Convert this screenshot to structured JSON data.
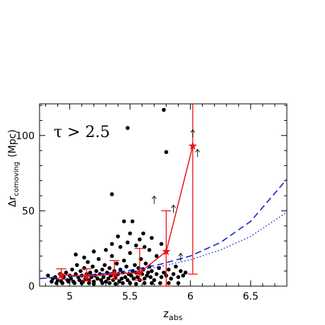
{
  "chart_data": {
    "type": "scatter",
    "annotation": "τ > 2.5",
    "xlabel": {
      "base": "z",
      "sub": "abs"
    },
    "ylabel": {
      "prefix": "Δr",
      "sub": "comoving",
      "unit": "(Mpc)"
    },
    "xlim": [
      4.75,
      6.8
    ],
    "ylim": [
      0,
      121
    ],
    "xticks": [
      5,
      5.5,
      6,
      6.5
    ],
    "yticks": [
      0,
      50,
      100
    ],
    "grid": false,
    "colors": {
      "points": "#000000",
      "binned": "#ee1111",
      "model": "#1122cc"
    },
    "points": [
      [
        4.82,
        7
      ],
      [
        4.86,
        5
      ],
      [
        4.88,
        6
      ],
      [
        4.9,
        4
      ],
      [
        4.92,
        8
      ],
      [
        4.93,
        3
      ],
      [
        4.95,
        6
      ],
      [
        4.97,
        9
      ],
      [
        4.98,
        4
      ],
      [
        5.0,
        7
      ],
      [
        5.01,
        5
      ],
      [
        5.02,
        11
      ],
      [
        5.03,
        3
      ],
      [
        5.05,
        8
      ],
      [
        5.06,
        14
      ],
      [
        5.07,
        6
      ],
      [
        5.08,
        4
      ],
      [
        5.09,
        10
      ],
      [
        5.1,
        7
      ],
      [
        5.11,
        3
      ],
      [
        5.12,
        12
      ],
      [
        5.13,
        5
      ],
      [
        5.14,
        8
      ],
      [
        5.15,
        16
      ],
      [
        5.16,
        4
      ],
      [
        5.17,
        9
      ],
      [
        5.18,
        6
      ],
      [
        5.19,
        13
      ],
      [
        5.2,
        3
      ],
      [
        5.21,
        7
      ],
      [
        5.22,
        10
      ],
      [
        5.23,
        5
      ],
      [
        5.24,
        18
      ],
      [
        5.25,
        8
      ],
      [
        5.26,
        4
      ],
      [
        5.27,
        11
      ],
      [
        5.28,
        6
      ],
      [
        5.29,
        14
      ],
      [
        5.3,
        3
      ],
      [
        5.31,
        9
      ],
      [
        5.32,
        5
      ],
      [
        5.33,
        12
      ],
      [
        5.34,
        7
      ],
      [
        5.35,
        20
      ],
      [
        5.36,
        4
      ],
      [
        5.37,
        10
      ],
      [
        5.38,
        6
      ],
      [
        5.39,
        15
      ],
      [
        5.4,
        8
      ],
      [
        5.41,
        3
      ],
      [
        5.42,
        11
      ],
      [
        5.43,
        5
      ],
      [
        5.44,
        9
      ],
      [
        5.45,
        17
      ],
      [
        5.46,
        6
      ],
      [
        5.47,
        13
      ],
      [
        5.48,
        4
      ],
      [
        5.49,
        8
      ],
      [
        5.5,
        22
      ],
      [
        5.51,
        7
      ],
      [
        5.52,
        10
      ],
      [
        5.53,
        5
      ],
      [
        5.54,
        14
      ],
      [
        5.55,
        9
      ],
      [
        5.56,
        6
      ],
      [
        5.57,
        12
      ],
      [
        5.58,
        4
      ],
      [
        5.59,
        18
      ],
      [
        5.6,
        8
      ],
      [
        5.61,
        11
      ],
      [
        5.62,
        5
      ],
      [
        5.63,
        15
      ],
      [
        5.64,
        7
      ],
      [
        5.65,
        9
      ],
      [
        5.66,
        13
      ],
      [
        5.67,
        6
      ],
      [
        5.68,
        10
      ],
      [
        5.7,
        4
      ],
      [
        5.72,
        8
      ],
      [
        5.74,
        12
      ],
      [
        5.76,
        6
      ],
      [
        5.78,
        9
      ],
      [
        5.8,
        7
      ],
      [
        5.82,
        11
      ],
      [
        5.84,
        5
      ],
      [
        5.86,
        8
      ],
      [
        5.88,
        13
      ],
      [
        5.9,
        6
      ],
      [
        5.92,
        10
      ],
      [
        5.94,
        7
      ],
      [
        5.96,
        9
      ],
      [
        4.85,
        3
      ],
      [
        4.89,
        2
      ],
      [
        4.94,
        2
      ],
      [
        4.99,
        3
      ],
      [
        5.04,
        2
      ],
      [
        5.1,
        2
      ],
      [
        5.16,
        2
      ],
      [
        5.2,
        1.5
      ],
      [
        5.27,
        2
      ],
      [
        5.33,
        2
      ],
      [
        5.38,
        1.5
      ],
      [
        5.44,
        2
      ],
      [
        5.5,
        2
      ],
      [
        5.55,
        1.5
      ],
      [
        5.62,
        2
      ],
      [
        5.68,
        2
      ],
      [
        5.75,
        2
      ],
      [
        5.82,
        2
      ],
      [
        5.9,
        2
      ],
      [
        5.05,
        21
      ],
      [
        5.12,
        19
      ],
      [
        5.2,
        23
      ],
      [
        5.3,
        24
      ],
      [
        5.42,
        26
      ],
      [
        5.48,
        29
      ],
      [
        5.55,
        27
      ],
      [
        5.62,
        26
      ],
      [
        5.72,
        20
      ],
      [
        5.66,
        24
      ],
      [
        5.35,
        28
      ],
      [
        5.4,
        33
      ],
      [
        5.58,
        31
      ],
      [
        5.5,
        35
      ],
      [
        5.61,
        35
      ],
      [
        5.68,
        32
      ],
      [
        5.45,
        43
      ],
      [
        5.52,
        43
      ],
      [
        5.76,
        28
      ],
      [
        5.35,
        61
      ],
      [
        5.48,
        105
      ],
      [
        5.78,
        117
      ],
      [
        5.8,
        89
      ]
    ],
    "lower_limit_arrows": [
      [
        5.7,
        57
      ],
      [
        5.86,
        51
      ],
      [
        5.92,
        19
      ],
      [
        6.02,
        101
      ],
      [
        6.06,
        88
      ]
    ],
    "binned_points": {
      "x": [
        4.93,
        5.14,
        5.37,
        5.58,
        5.8,
        6.02
      ],
      "y": [
        7.5,
        6.5,
        8,
        9,
        23,
        93
      ],
      "yerr_low": [
        3,
        3,
        3.5,
        5,
        23,
        85
      ],
      "yerr_high": [
        4,
        5,
        9,
        16,
        27,
        121
      ]
    },
    "model_dashed": {
      "x": [
        4.75,
        5.0,
        5.25,
        5.5,
        5.75,
        6.0,
        6.25,
        6.5,
        6.8
      ],
      "y": [
        5,
        6.5,
        8,
        10.5,
        14.5,
        20,
        29,
        43,
        71
      ]
    },
    "model_dotted": {
      "x": [
        4.75,
        5.0,
        5.25,
        5.5,
        5.75,
        6.0,
        6.25,
        6.5,
        6.8
      ],
      "y": [
        5,
        6.2,
        7.5,
        9.5,
        13,
        17.5,
        24,
        33,
        49
      ]
    }
  }
}
